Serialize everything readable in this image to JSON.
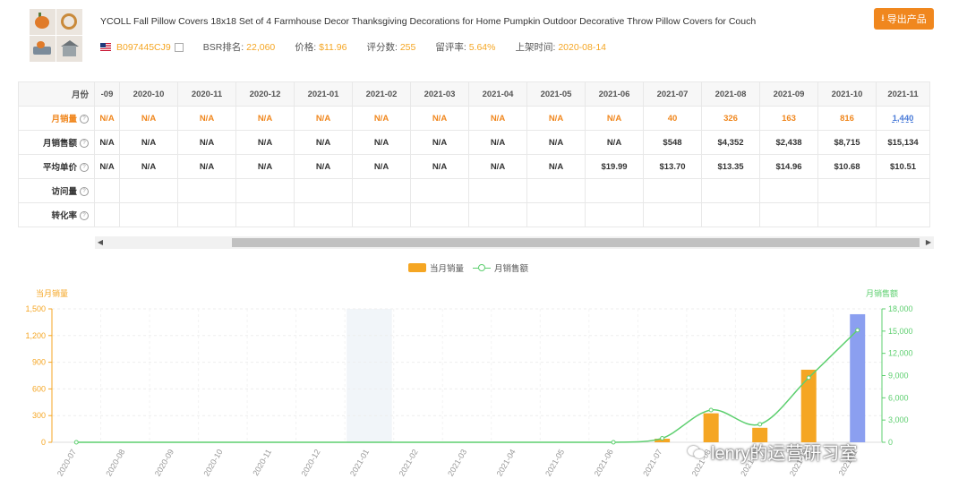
{
  "product": {
    "title": "YCOLL Fall Pillow Covers 18x18 Set of 4 Farmhouse Decor Thanksgiving Decorations for Home Pumpkin Outdoor Decorative Throw Pillow Covers for Couch",
    "asin": "B097445CJ9",
    "bsr_label": "BSR排名:",
    "bsr_value": "22,060",
    "price_label": "价格:",
    "price_value": "$11.96",
    "reviews_label": "评分数:",
    "reviews_value": "255",
    "review_rate_label": "留评率:",
    "review_rate_value": "5.64%",
    "listed_label": "上架时间:",
    "listed_value": "2020-08-14",
    "export_label": "导出产品"
  },
  "table": {
    "row_labels": {
      "month": "月份",
      "units": "月销量",
      "sales": "月销售额",
      "avg_price": "平均单价",
      "visits": "访问量",
      "conversion": "转化率"
    },
    "months": [
      "-09",
      "2020-10",
      "2020-11",
      "2020-12",
      "2021-01",
      "2021-02",
      "2021-03",
      "2021-04",
      "2021-05",
      "2021-06",
      "2021-07",
      "2021-08",
      "2021-09",
      "2021-10",
      "2021-11"
    ],
    "units": [
      "N/A",
      "N/A",
      "N/A",
      "N/A",
      "N/A",
      "N/A",
      "N/A",
      "N/A",
      "N/A",
      "N/A",
      "40",
      "326",
      "163",
      "816",
      "1,440"
    ],
    "sales": [
      "N/A",
      "N/A",
      "N/A",
      "N/A",
      "N/A",
      "N/A",
      "N/A",
      "N/A",
      "N/A",
      "N/A",
      "$548",
      "$4,352",
      "$2,438",
      "$8,715",
      "$15,134"
    ],
    "avg_price": [
      "N/A",
      "N/A",
      "N/A",
      "N/A",
      "N/A",
      "N/A",
      "N/A",
      "N/A",
      "N/A",
      "$19.99",
      "$13.70",
      "$13.35",
      "$14.96",
      "$10.68",
      "$10.51"
    ]
  },
  "chart_legend": {
    "units": "当月销量",
    "sales": "月销售额"
  },
  "chart_data": {
    "type": "bar",
    "ylabel": "当月销量",
    "y2label": "月销售额",
    "categories": [
      "2020-07",
      "2020-08",
      "2020-09",
      "2020-10",
      "2020-11",
      "2020-12",
      "2021-01",
      "2021-02",
      "2021-03",
      "2021-04",
      "2021-05",
      "2021-06",
      "2021-07",
      "2021-08",
      "2021-09",
      "2021-10",
      "2021-11"
    ],
    "ylim": [
      0,
      1500
    ],
    "yticks": [
      "0",
      "300",
      "600",
      "900",
      "1,200",
      "1,500"
    ],
    "y2lim": [
      0,
      18000
    ],
    "y2ticks": [
      "0",
      "3,000",
      "6,000",
      "9,000",
      "12,000",
      "15,000",
      "18,000"
    ],
    "series": [
      {
        "name": "当月销量",
        "type": "bar",
        "color": "#f5a623",
        "highlight_color": "#8b9ff0",
        "highlight_index": 16,
        "values": [
          0,
          0,
          0,
          0,
          0,
          0,
          0,
          0,
          0,
          0,
          0,
          0,
          40,
          326,
          163,
          816,
          1440
        ]
      },
      {
        "name": "月销售额",
        "type": "line",
        "color": "#5dcf6f",
        "values": [
          0,
          null,
          null,
          null,
          null,
          null,
          null,
          null,
          null,
          null,
          null,
          0,
          548,
          4352,
          2438,
          8715,
          15134
        ]
      }
    ],
    "hover_band_index": 6
  },
  "watermark": "lenry的运营研习室"
}
